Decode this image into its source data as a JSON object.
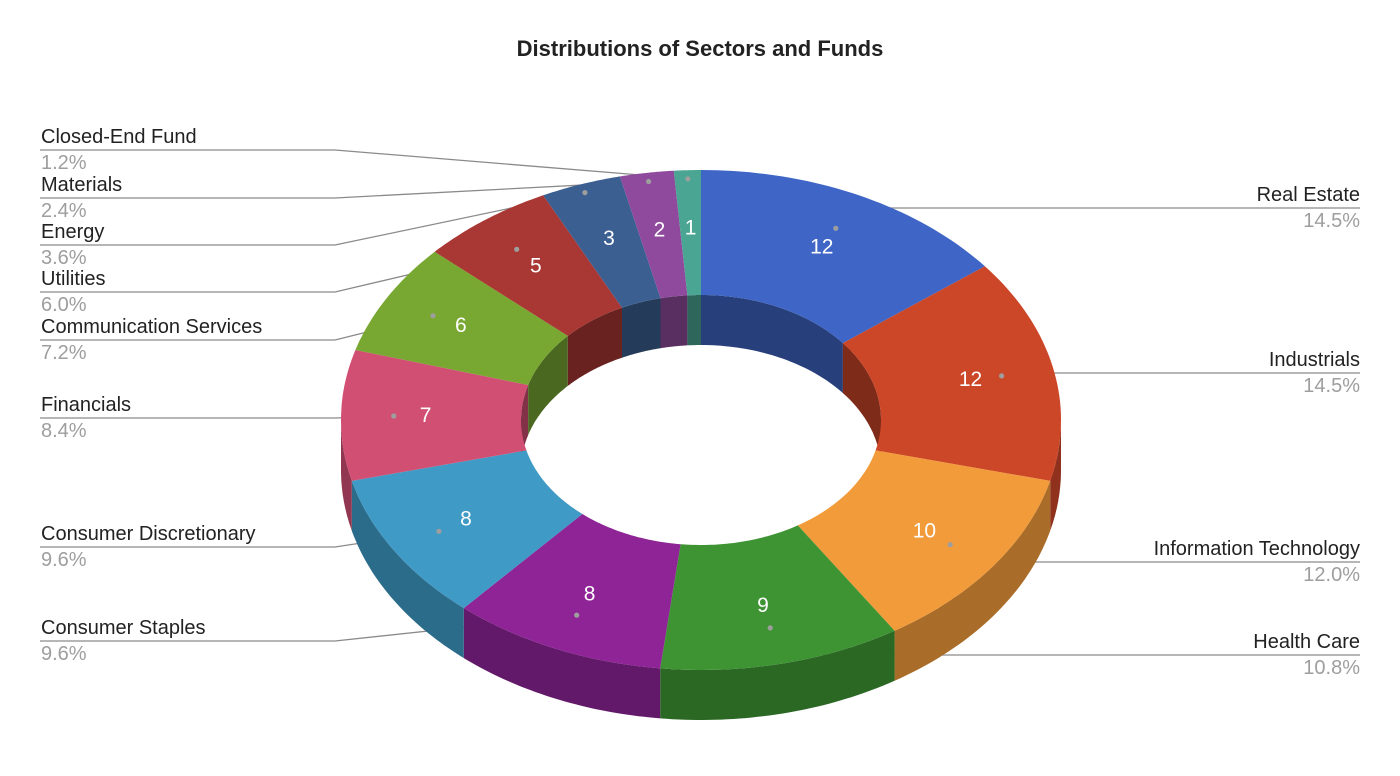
{
  "chart_data": {
    "type": "pie",
    "title": "Distributions of Sectors and Funds",
    "style": "3d-donut",
    "slices": [
      {
        "label": "Real Estate",
        "value": 12,
        "percent": "14.5%",
        "color": "#3f66c6"
      },
      {
        "label": "Industrials",
        "value": 12,
        "percent": "14.5%",
        "color": "#cc4628"
      },
      {
        "label": "Information Technology",
        "value": 10,
        "percent": "12.0%",
        "color": "#f29b3a"
      },
      {
        "label": "Health Care",
        "value": 9,
        "percent": "10.8%",
        "color": "#3e9433"
      },
      {
        "label": "Consumer Staples",
        "value": 8,
        "percent": "9.6%",
        "color": "#8e2496"
      },
      {
        "label": "Consumer Discretionary",
        "value": 8,
        "percent": "9.6%",
        "color": "#3f9ac6"
      },
      {
        "label": "Financials",
        "value": 7,
        "percent": "8.4%",
        "color": "#d14f73"
      },
      {
        "label": "Communication Services",
        "value": 6,
        "percent": "7.2%",
        "color": "#78a732"
      },
      {
        "label": "Utilities",
        "value": 5,
        "percent": "6.0%",
        "color": "#a93733"
      },
      {
        "label": "Energy",
        "value": 3,
        "percent": "3.6%",
        "color": "#3c5f91"
      },
      {
        "label": "Materials",
        "value": 2,
        "percent": "2.4%",
        "color": "#8f4a9d"
      },
      {
        "label": "Closed-End Fund",
        "value": 1,
        "percent": "1.2%",
        "color": "#4aa592"
      }
    ]
  }
}
